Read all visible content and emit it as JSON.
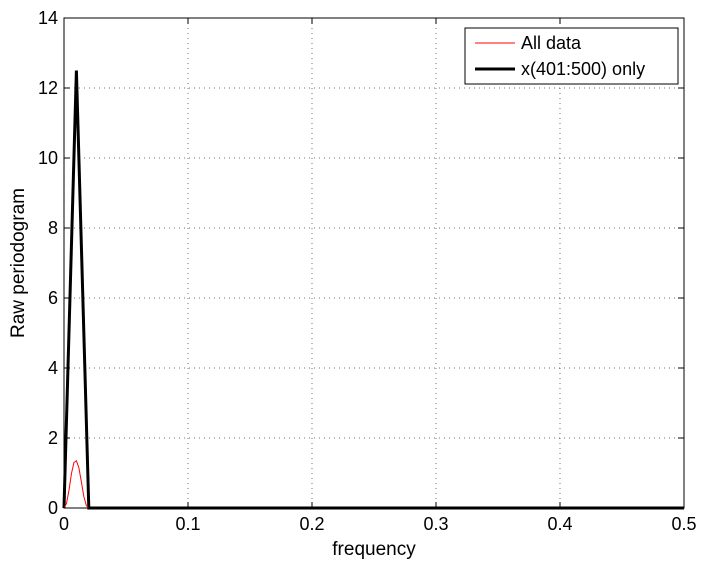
{
  "chart_data": {
    "type": "line",
    "title": "",
    "xlabel": "frequency",
    "ylabel": "Raw periodogram",
    "xlim": [
      0,
      0.5
    ],
    "ylim": [
      0,
      14
    ],
    "xticks": [
      0,
      0.1,
      0.2,
      0.3,
      0.4,
      0.5
    ],
    "xtick_labels": [
      "0",
      "0.1",
      "0.2",
      "0.3",
      "0.4",
      "0.5"
    ],
    "yticks": [
      0,
      2,
      4,
      6,
      8,
      10,
      12,
      14
    ],
    "ytick_labels": [
      "0",
      "2",
      "4",
      "6",
      "8",
      "10",
      "12",
      "14"
    ],
    "grid": true,
    "legend_position": "top-right",
    "series": [
      {
        "name": "All data",
        "color": "#ff0000",
        "line_weight": "thin",
        "x": [
          0,
          0.002,
          0.004,
          0.006,
          0.008,
          0.01,
          0.012,
          0.014,
          0.016,
          0.018,
          0.02,
          0.5
        ],
        "y": [
          0,
          0.13,
          0.5,
          0.98,
          1.3,
          1.35,
          1.15,
          0.75,
          0.33,
          0.07,
          0,
          0
        ]
      },
      {
        "name": "x(401:500) only",
        "color": "#000000",
        "line_weight": "thick",
        "x": [
          0,
          0.01,
          0.02,
          0.5
        ],
        "y": [
          0,
          12.5,
          0,
          0
        ]
      }
    ]
  }
}
